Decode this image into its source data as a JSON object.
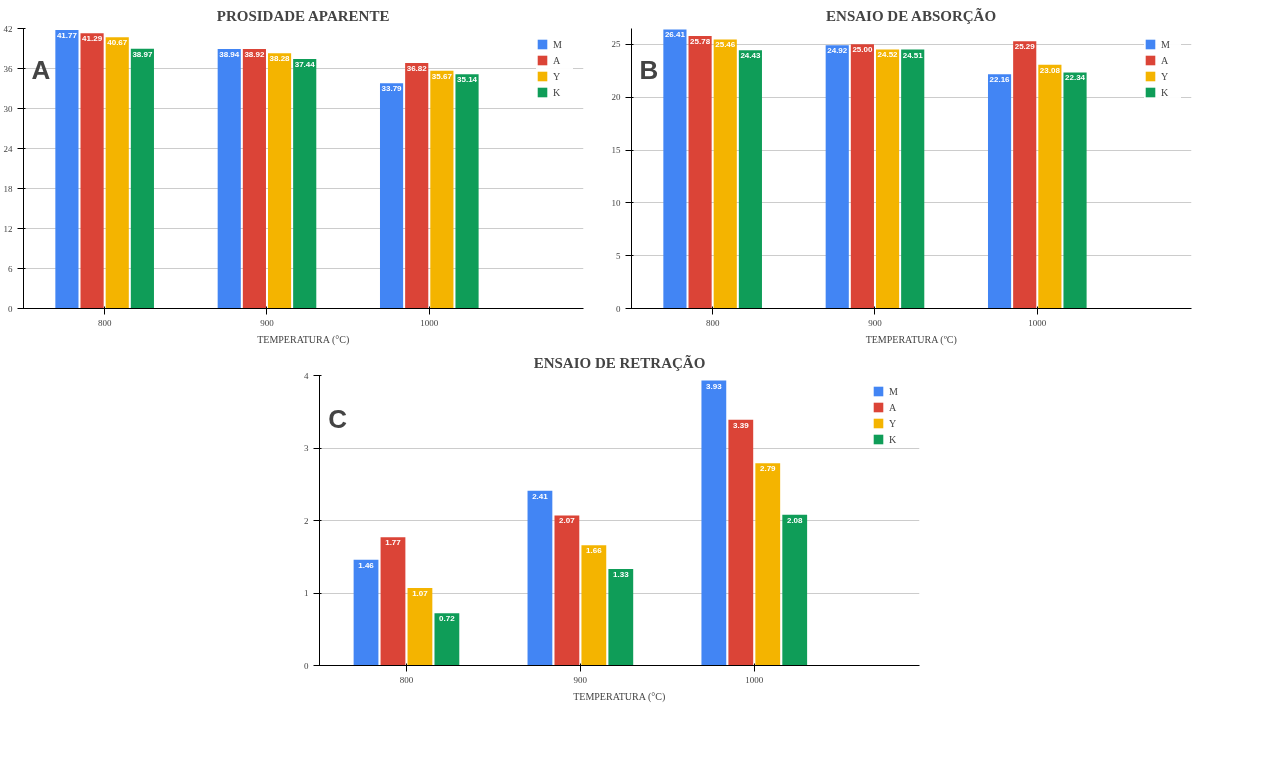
{
  "chart_data": [
    {
      "type": "bar",
      "title": "PROSIDADE APARENTE",
      "xlabel": "TEMPERATURA (°C)",
      "categories": [
        "800",
        "900",
        "1000"
      ],
      "series": [
        {
          "name": "M",
          "color": "#4285f4",
          "values": [
            41.77,
            38.94,
            33.79
          ]
        },
        {
          "name": "A",
          "color": "#db4437",
          "values": [
            41.29,
            38.92,
            36.82
          ]
        },
        {
          "name": "Y",
          "color": "#f4b400",
          "values": [
            40.67,
            38.28,
            35.67
          ]
        },
        {
          "name": "K",
          "color": "#0f9d58",
          "values": [
            38.97,
            37.44,
            35.14
          ]
        }
      ],
      "ylim": [
        0,
        42
      ],
      "yticks": [
        0,
        6,
        12,
        18,
        24,
        30,
        36,
        42
      ],
      "grid": "y",
      "legend": "top right",
      "data_labels": true,
      "annotations": [
        "A"
      ]
    },
    {
      "type": "bar",
      "title": "ENSAIO DE ABSORÇÃO",
      "xlabel": "TEMPERATURA (ºC)",
      "categories": [
        "800",
        "900",
        "1000"
      ],
      "series": [
        {
          "name": "M",
          "color": "#4285f4",
          "values": [
            26.41,
            24.92,
            22.16
          ]
        },
        {
          "name": "A",
          "color": "#db4437",
          "values": [
            25.78,
            25.0,
            25.29
          ],
          "value_labels": [
            "25.78",
            "25.00",
            "25.29"
          ]
        },
        {
          "name": "Y",
          "color": "#f4b400",
          "values": [
            25.46,
            24.52,
            23.08
          ]
        },
        {
          "name": "K",
          "color": "#0f9d58",
          "values": [
            24.43,
            24.51,
            22.34
          ]
        }
      ],
      "ylim": [
        0,
        26.5
      ],
      "yticks": [
        0,
        5,
        10,
        15,
        20,
        25
      ],
      "grid": "y",
      "legend": "top right",
      "data_labels": true,
      "annotations": [
        "B"
      ]
    },
    {
      "type": "bar",
      "title": "ENSAIO DE RETRAÇÃO",
      "xlabel": "TEMPERATURA (°C)",
      "categories": [
        "800",
        "900",
        "1000"
      ],
      "series": [
        {
          "name": "M",
          "color": "#4285f4",
          "values": [
            1.46,
            2.41,
            3.93
          ]
        },
        {
          "name": "A",
          "color": "#db4437",
          "values": [
            1.77,
            2.07,
            3.39
          ]
        },
        {
          "name": "Y",
          "color": "#f4b400",
          "values": [
            1.07,
            1.66,
            2.79
          ]
        },
        {
          "name": "K",
          "color": "#0f9d58",
          "values": [
            0.72,
            1.33,
            2.08
          ]
        }
      ],
      "ylim": [
        0,
        4
      ],
      "yticks": [
        0,
        1,
        2,
        3,
        4
      ],
      "grid": "y",
      "legend": "top right",
      "data_labels": true,
      "annotations": [
        "C"
      ]
    }
  ]
}
